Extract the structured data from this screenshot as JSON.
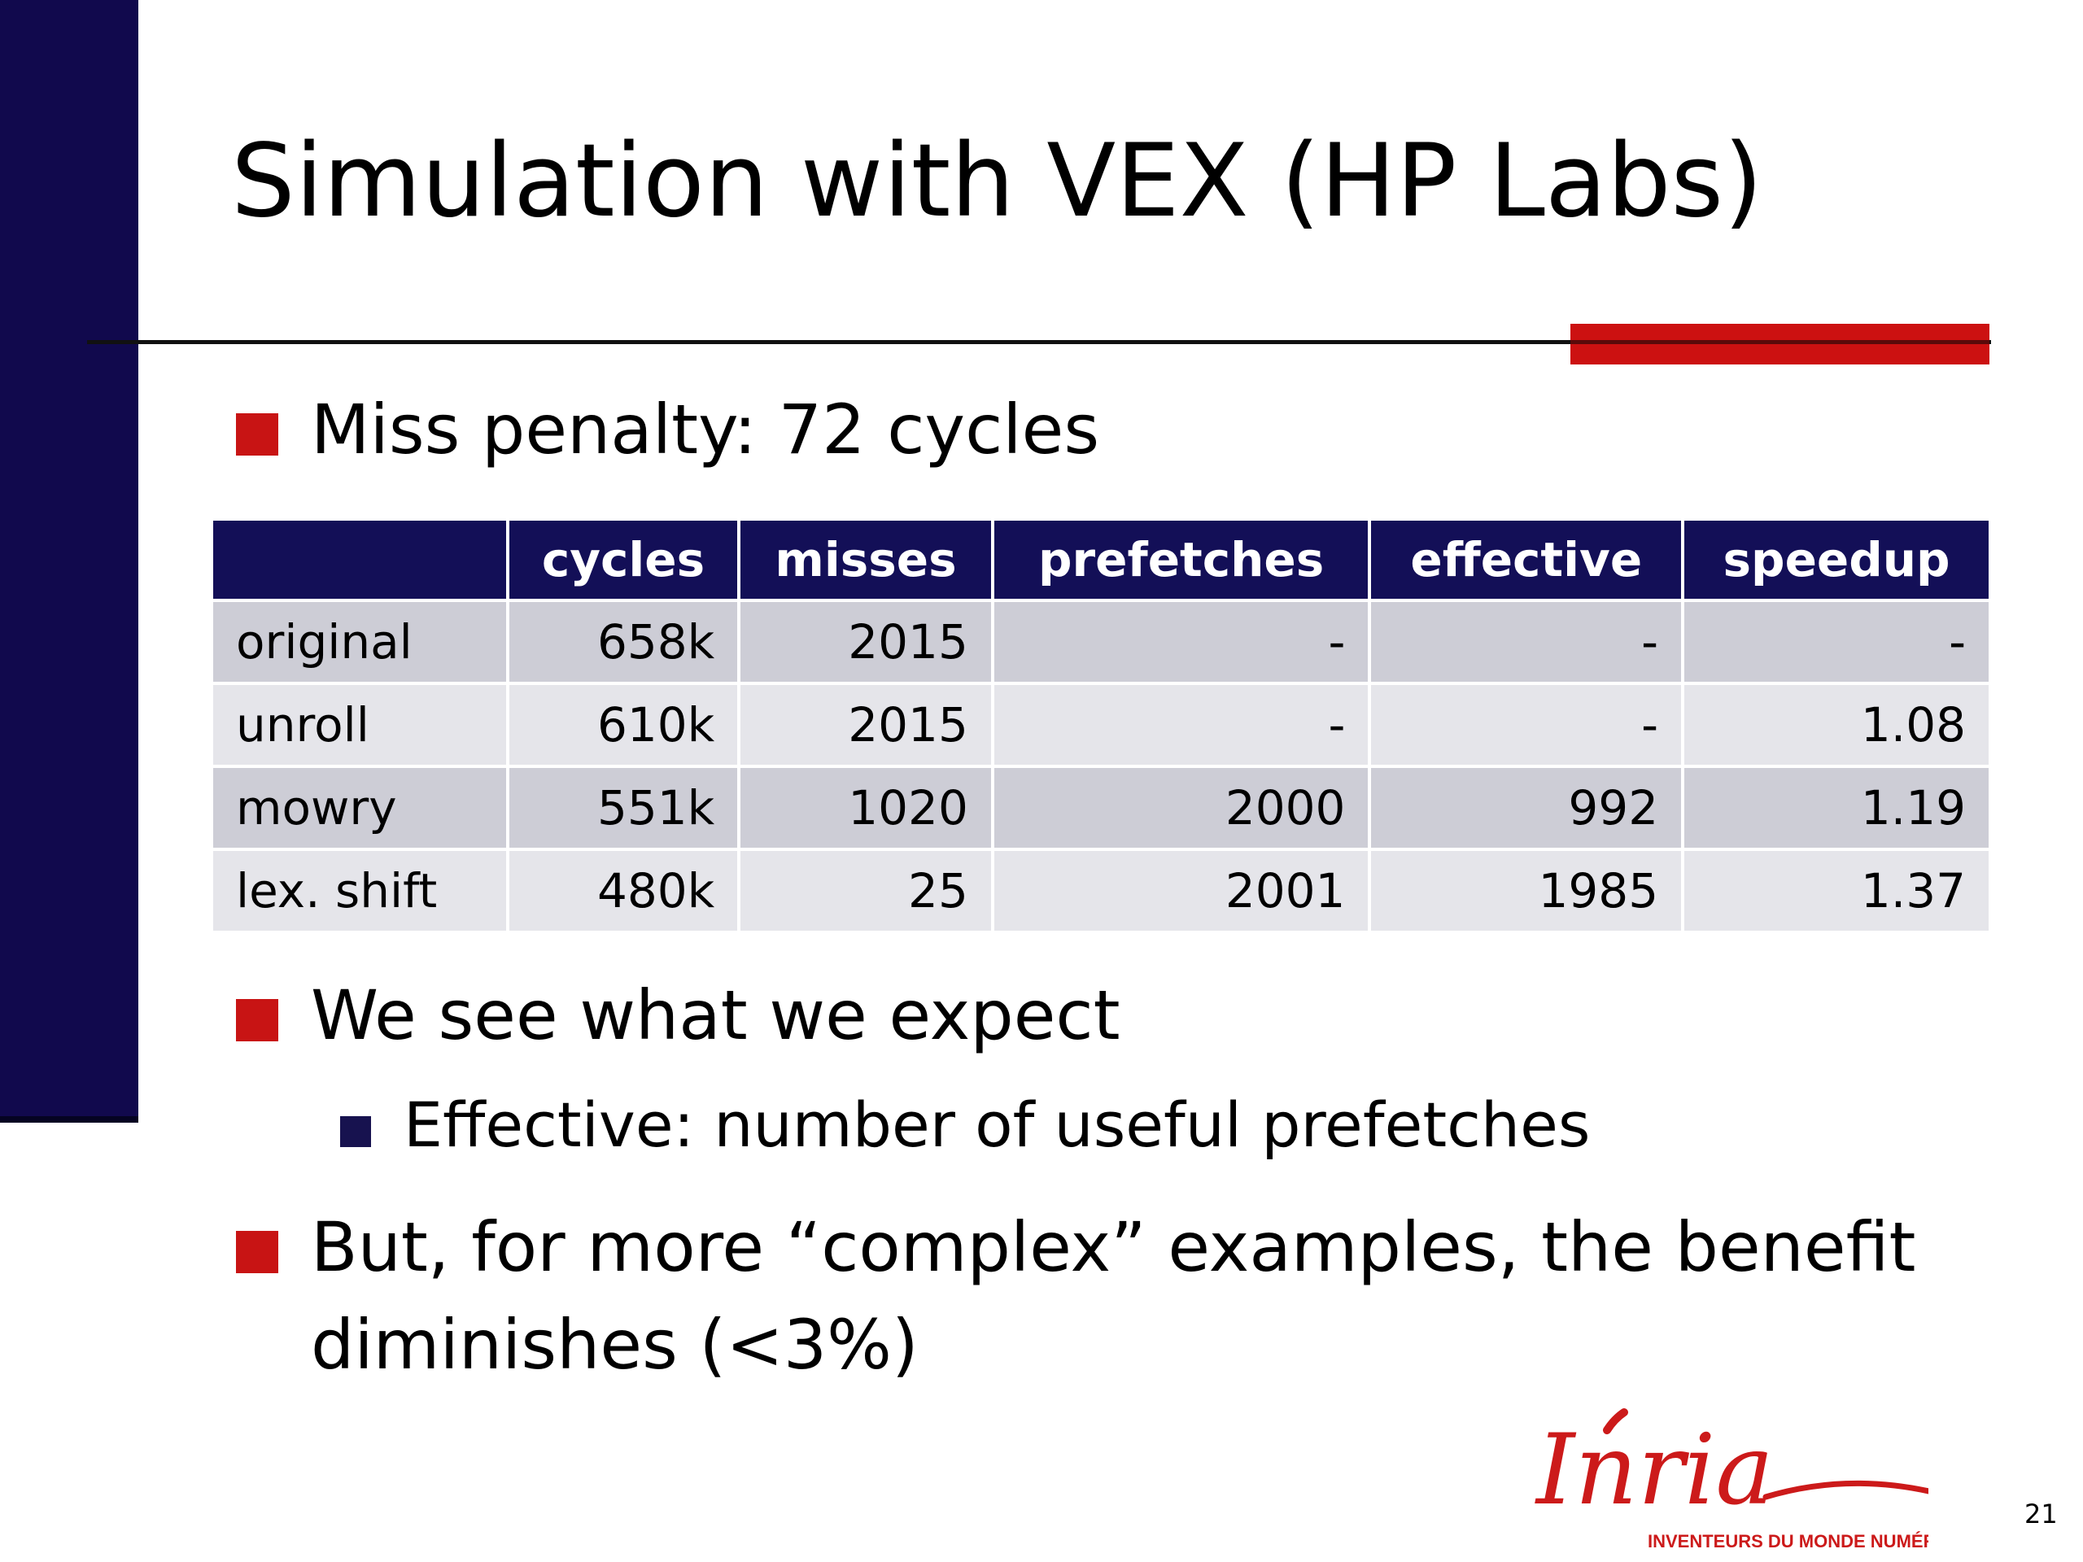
{
  "slide": {
    "title": "Simulation with VEX (HP Labs)",
    "page_number": "21",
    "accent_color": "#cc1111",
    "sidebar_color": "#11094d"
  },
  "bullets": [
    {
      "level": 1,
      "text": "Miss penalty: 72 cycles"
    },
    {
      "level": 1,
      "text": "We see what we expect"
    },
    {
      "level": 2,
      "text": "Effective: number of useful prefetches"
    },
    {
      "level": 1,
      "text_line1": "But, for more “complex” examples, the benefit",
      "text_line2": "diminishes (<3%)"
    }
  ],
  "table": {
    "headers": [
      "",
      "cycles",
      "misses",
      "prefetches",
      "effective",
      "speedup"
    ],
    "rows": [
      [
        "original",
        "658k",
        "2015",
        "-",
        "-",
        "-"
      ],
      [
        "unroll",
        "610k",
        "2015",
        "-",
        "-",
        "1.08"
      ],
      [
        "mowry",
        "551k",
        "1020",
        "2000",
        "992",
        "1.19"
      ],
      [
        "lex. shift",
        "480k",
        "25",
        "2001",
        "1985",
        "1.37"
      ]
    ],
    "header_color": "#130f57"
  },
  "logo": {
    "wordmark": "Inria",
    "tagline": "INVENTEURS DU MONDE NUMÉRIQUE",
    "color": "#cc1a1a"
  }
}
